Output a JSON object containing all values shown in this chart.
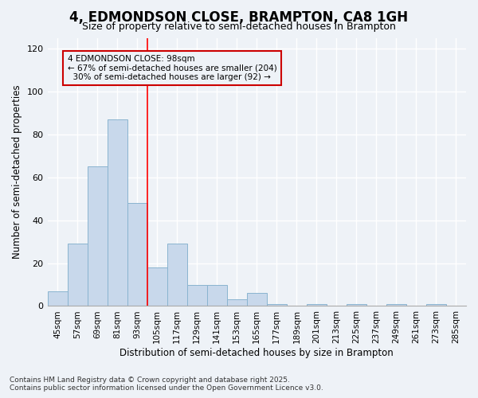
{
  "title": "4, EDMONDSON CLOSE, BRAMPTON, CA8 1GH",
  "subtitle": "Size of property relative to semi-detached houses in Brampton",
  "xlabel": "Distribution of semi-detached houses by size in Brampton",
  "ylabel": "Number of semi-detached properties",
  "categories": [
    "45sqm",
    "57sqm",
    "69sqm",
    "81sqm",
    "93sqm",
    "105sqm",
    "117sqm",
    "129sqm",
    "141sqm",
    "153sqm",
    "165sqm",
    "177sqm",
    "189sqm",
    "201sqm",
    "213sqm",
    "225sqm",
    "237sqm",
    "249sqm",
    "261sqm",
    "273sqm",
    "285sqm"
  ],
  "values": [
    7,
    29,
    65,
    87,
    48,
    18,
    29,
    10,
    10,
    3,
    6,
    1,
    0,
    1,
    0,
    1,
    0,
    1,
    0,
    1,
    0
  ],
  "bar_color": "#c8d8eb",
  "bar_edge_color": "#8ab4d0",
  "vline_position": 4.5,
  "ylim": [
    0,
    125
  ],
  "yticks": [
    0,
    20,
    40,
    60,
    80,
    100,
    120
  ],
  "background_color": "#eef2f7",
  "grid_color": "#ffffff",
  "annotation_box_color": "#cc0000",
  "property_label": "4 EDMONDSON CLOSE: 98sqm",
  "pct_smaller": 67,
  "count_smaller": 204,
  "pct_larger": 30,
  "count_larger": 92,
  "footer_text": "Contains HM Land Registry data © Crown copyright and database right 2025.\nContains public sector information licensed under the Open Government Licence v3.0."
}
